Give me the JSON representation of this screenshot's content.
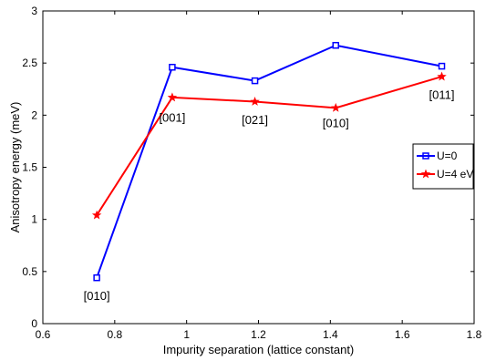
{
  "chart_data": {
    "type": "line",
    "title": "",
    "xlabel": "Impurity separation (lattice constant)",
    "ylabel": "Anisotropy energy (meV)",
    "xlim": [
      0.6,
      1.8
    ],
    "ylim": [
      0,
      3
    ],
    "xticks": [
      "0.6",
      "0.8",
      "1",
      "1.2",
      "1.4",
      "1.6",
      "1.8"
    ],
    "yticks": [
      "0",
      "0.5",
      "1",
      "1.5",
      "2",
      "2.5",
      "3"
    ],
    "grid": false,
    "legend_position": "right",
    "series": [
      {
        "name": "U=0",
        "color": "#0000ff",
        "marker": "square",
        "x": [
          0.75,
          0.96,
          1.19,
          1.415,
          1.71
        ],
        "y": [
          0.44,
          2.46,
          2.33,
          2.67,
          2.47
        ]
      },
      {
        "name": "U=4 eV",
        "color": "#ff0000",
        "marker": "star",
        "x": [
          0.75,
          0.96,
          1.19,
          1.415,
          1.71
        ],
        "y": [
          1.04,
          2.17,
          2.13,
          2.07,
          2.37
        ]
      }
    ],
    "annotations": [
      {
        "text": "[010]",
        "x": 0.75,
        "y": 0.27
      },
      {
        "text": "[001]",
        "x": 0.96,
        "y": 1.98
      },
      {
        "text": "[021]",
        "x": 1.19,
        "y": 1.96
      },
      {
        "text": "[010]",
        "x": 1.415,
        "y": 1.93
      },
      {
        "text": "[011]",
        "x": 1.71,
        "y": 2.2
      }
    ]
  }
}
